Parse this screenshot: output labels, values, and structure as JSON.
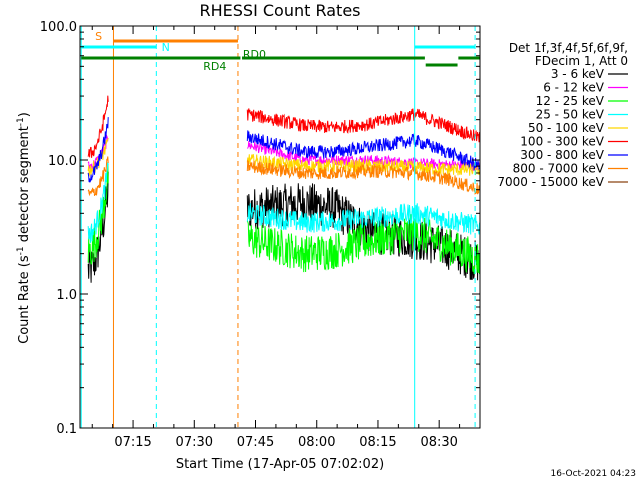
{
  "chart_data": {
    "type": "line",
    "title": "RHESSI Count Rates",
    "xlabel": "Start Time (17-Apr-05 07:02:02)",
    "ylabel_main": "Count Rate (s",
    "ylabel_sup1": "-1",
    "ylabel_mid": " detector segment",
    "ylabel_sup2": "-1",
    "ylabel_end": ")",
    "y_scale": "log",
    "ylim": [
      0.1,
      100
    ],
    "xlim_minutes": [
      0,
      98
    ],
    "x_ticks": [
      {
        "minute": 13,
        "label": "07:15"
      },
      {
        "minute": 28,
        "label": "07:30"
      },
      {
        "minute": 43,
        "label": "07:45"
      },
      {
        "minute": 58,
        "label": "08:00"
      },
      {
        "minute": 73,
        "label": "08:15"
      },
      {
        "minute": 88,
        "label": "08:30"
      }
    ],
    "y_ticks": [
      {
        "value": 0.1,
        "label": "0.1"
      },
      {
        "value": 1,
        "label": "1.0"
      },
      {
        "value": 10,
        "label": "10.0"
      },
      {
        "value": 100,
        "label": "100.0"
      }
    ],
    "legend_position": "right",
    "legend_header": [
      "Det 1f,3f,4f,5f,6f,9f,",
      "FDecim 1, Att 0"
    ],
    "series": [
      {
        "name": "3 - 6 keV",
        "color": "#000000",
        "values": [
          1.5,
          6.5,
          4.3,
          4.8,
          4.4,
          2.9,
          2.6,
          2.2,
          1.7
        ],
        "x": [
          2,
          7,
          41,
          55,
          62,
          71,
          82,
          90,
          98
        ]
      },
      {
        "name": "6 - 12 keV",
        "color": "#ff00ff",
        "values": [
          9.0,
          15.0,
          13.0,
          10.0,
          10.0,
          10.0,
          9.5,
          9.2,
          9.0
        ],
        "x": [
          2,
          7,
          41,
          55,
          62,
          71,
          82,
          90,
          98
        ]
      },
      {
        "name": "12 - 25 keV",
        "color": "#00ff00",
        "values": [
          2.1,
          8.0,
          2.6,
          2.0,
          2.1,
          2.5,
          2.9,
          2.3,
          1.8
        ],
        "x": [
          2,
          7,
          41,
          55,
          62,
          71,
          82,
          90,
          98
        ]
      },
      {
        "name": "25 - 50 keV",
        "color": "#00ffff",
        "values": [
          2.8,
          9.0,
          4.0,
          3.4,
          3.5,
          3.7,
          4.0,
          3.6,
          3.2
        ],
        "x": [
          2,
          7,
          41,
          55,
          62,
          71,
          82,
          90,
          98
        ]
      },
      {
        "name": "50 - 100 keV",
        "color": "#ffd700",
        "values": [
          8.5,
          14.0,
          10.0,
          9.0,
          9.0,
          9.0,
          8.8,
          8.5,
          8.5
        ],
        "x": [
          2,
          7,
          41,
          55,
          62,
          71,
          82,
          90,
          98
        ]
      },
      {
        "name": "100 - 300 keV",
        "color": "#ff0000",
        "values": [
          11.0,
          30.0,
          22.0,
          18.0,
          17.5,
          18.5,
          22.0,
          18.0,
          14.5
        ],
        "x": [
          2,
          7,
          41,
          55,
          62,
          71,
          82,
          90,
          98
        ]
      },
      {
        "name": "300 - 800 keV",
        "color": "#0000ff",
        "values": [
          7.5,
          20.0,
          15.0,
          11.5,
          11.5,
          12.5,
          14.0,
          11.5,
          9.0
        ],
        "x": [
          2,
          7,
          41,
          55,
          62,
          71,
          82,
          90,
          98
        ]
      },
      {
        "name": "800 - 7000 keV",
        "color": "#ff8000",
        "values": [
          5.5,
          10.0,
          9.0,
          8.0,
          8.0,
          8.3,
          8.0,
          7.2,
          6.0
        ],
        "x": [
          2,
          7,
          41,
          55,
          62,
          71,
          82,
          90,
          98
        ]
      },
      {
        "name": "7000 - 15000 keV",
        "color": "#8b4513",
        "values": [],
        "x": []
      }
    ],
    "annotations": {
      "vlines": [
        {
          "minute": 0.3,
          "color": "#00ffff",
          "style": "solid"
        },
        {
          "minute": 8.2,
          "color": "#ff8000",
          "style": "solid"
        },
        {
          "minute": 18.7,
          "color": "#00ffff",
          "style": "dashed"
        },
        {
          "minute": 38.7,
          "color": "#ff8000",
          "style": "dashed"
        },
        {
          "minute": 82.0,
          "color": "#00ffff",
          "style": "solid"
        },
        {
          "minute": 96.8,
          "color": "#00ffff",
          "style": "dashed"
        }
      ],
      "flags": [
        {
          "label": "S",
          "color": "#ff8000",
          "segments": [
            [
              8.2,
              38.7
            ]
          ],
          "level": 41
        },
        {
          "label": "N",
          "color": "#00ffff",
          "segments": [
            [
              0.3,
              18.7
            ],
            [
              82.0,
              96.8
            ]
          ],
          "level": 47
        },
        {
          "label": "RD0",
          "color": "#008000",
          "segments": [
            [
              0.3,
              39.3
            ],
            [
              39.7,
              84.5
            ],
            [
              92.7,
              100
            ]
          ],
          "level": 58
        },
        {
          "label": "RD4",
          "color": "#008000",
          "segments": [
            [
              84.7,
              92.5
            ]
          ],
          "level": 65
        }
      ]
    }
  },
  "footer_timestamp": "16-Oct-2021 04:23"
}
